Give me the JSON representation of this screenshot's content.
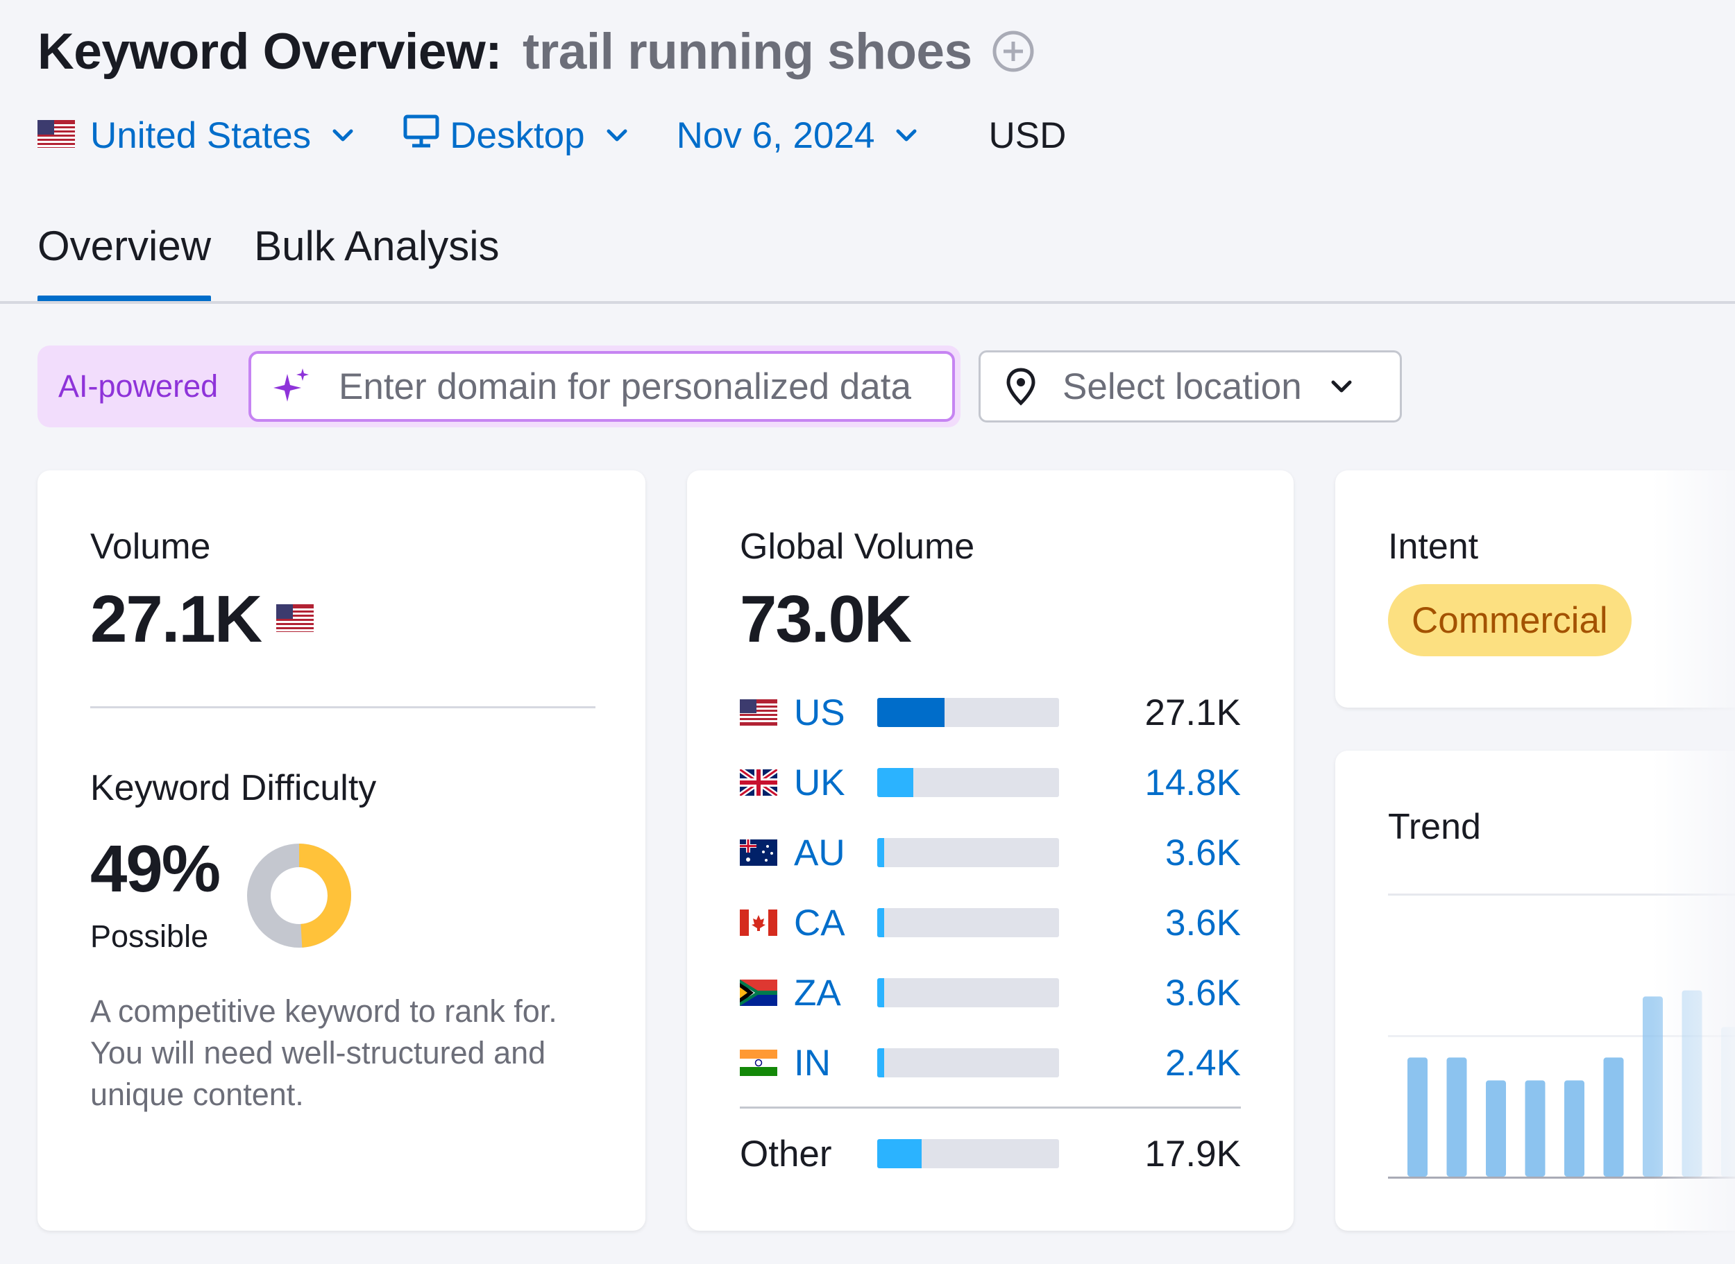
{
  "header": {
    "title_prefix": "Keyword Overview:",
    "keyword": "trail running shoes"
  },
  "filters": {
    "country": "United States",
    "device": "Desktop",
    "date": "Nov 6, 2024",
    "currency": "USD"
  },
  "tabs": [
    {
      "label": "Overview",
      "active": true
    },
    {
      "label": "Bulk Analysis",
      "active": false
    }
  ],
  "ai": {
    "badge": "AI-powered",
    "placeholder": "Enter domain for personalized data"
  },
  "location": {
    "placeholder": "Select location"
  },
  "volume": {
    "heading": "Volume",
    "value": "27.1K"
  },
  "difficulty": {
    "heading": "Keyword Difficulty",
    "value": "49%",
    "percent": 49,
    "level": "Possible",
    "description": "A competitive keyword to rank for. You will need well-structured and unique content."
  },
  "global_volume": {
    "heading": "Global Volume",
    "value": "73.0K",
    "countries": [
      {
        "code": "US",
        "value": "27.1K",
        "share": 0.37,
        "color": "#006dca"
      },
      {
        "code": "UK",
        "value": "14.8K",
        "share": 0.2,
        "color": "#2bb3ff"
      },
      {
        "code": "AU",
        "value": "3.6K",
        "share": 0.04,
        "color": "#2bb3ff"
      },
      {
        "code": "CA",
        "value": "3.6K",
        "share": 0.04,
        "color": "#2bb3ff"
      },
      {
        "code": "ZA",
        "value": "3.6K",
        "share": 0.04,
        "color": "#2bb3ff"
      },
      {
        "code": "IN",
        "value": "2.4K",
        "share": 0.04,
        "color": "#2bb3ff"
      }
    ],
    "other": {
      "label": "Other",
      "value": "17.9K",
      "share": 0.245,
      "color": "#2bb3ff"
    }
  },
  "intent": {
    "heading": "Intent",
    "value": "Commercial"
  },
  "trend": {
    "heading": "Trend",
    "bars": [
      0.78,
      0.78,
      0.63,
      0.63,
      0.63,
      0.78,
      1.18,
      1.22,
      0.98
    ]
  },
  "colors": {
    "accent": "#006dca",
    "ai_purple": "#8e33d9",
    "kd_orange": "#ffc23a",
    "kd_gray": "#c4c7cf"
  }
}
